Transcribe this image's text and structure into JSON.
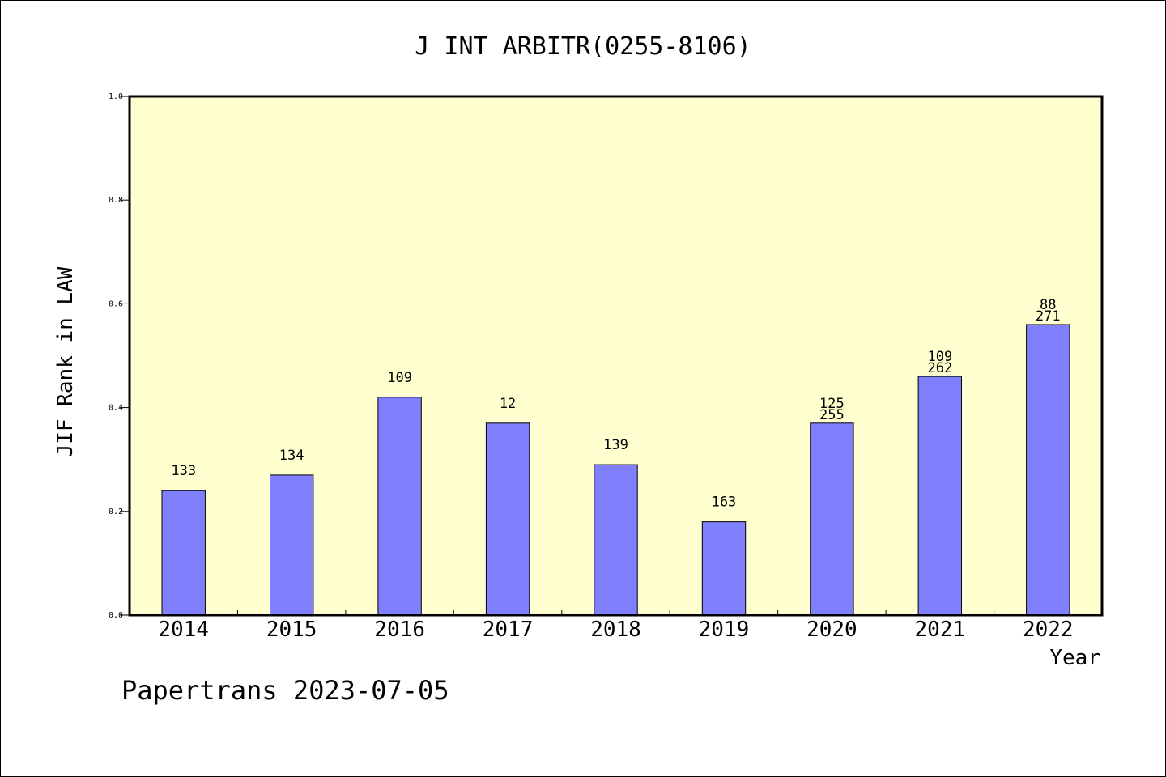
{
  "chart_data": {
    "type": "bar",
    "title": "J INT ARBITR(0255-8106)",
    "xlabel": "Year",
    "ylabel": "JIF Rank in LAW",
    "footer": "Papertrans 2023-07-05",
    "ylim": [
      0,
      1.0
    ],
    "yticks": [
      "0.0",
      "0.2",
      "0.4",
      "0.6",
      "0.8",
      "1.0"
    ],
    "categories": [
      "2014",
      "2015",
      "2016",
      "2017",
      "2018",
      "2019",
      "2020",
      "2021",
      "2022"
    ],
    "values": [
      0.24,
      0.27,
      0.42,
      0.37,
      0.29,
      0.18,
      0.37,
      0.46,
      0.56
    ],
    "labels": [
      [
        "133"
      ],
      [
        "134"
      ],
      [
        "109"
      ],
      [
        "12"
      ],
      [
        "139"
      ],
      [
        "163"
      ],
      [
        "125",
        "255"
      ],
      [
        "109",
        "262"
      ],
      [
        "88",
        "271"
      ]
    ],
    "grid": false,
    "colors": {
      "bar": "#8080ff",
      "plot_background": "#ffffd0",
      "axis": "#000000"
    }
  }
}
